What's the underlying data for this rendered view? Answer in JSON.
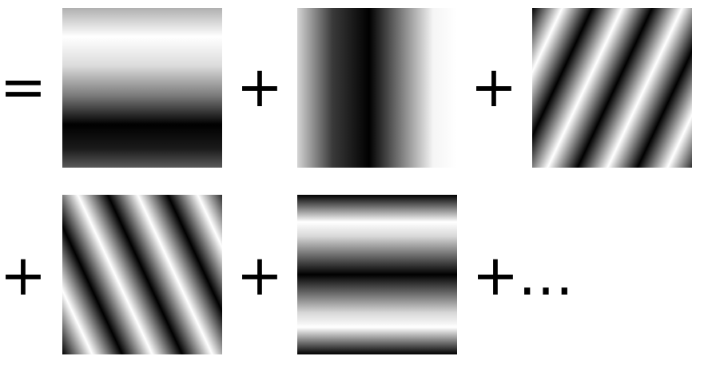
{
  "equation": {
    "equals": "=",
    "plus": "+",
    "ellipsis": "…"
  },
  "tiles": [
    {
      "orientation": "horizontal",
      "description_icon": "horizontal-wave-tile"
    },
    {
      "orientation": "vertical",
      "description_icon": "vertical-wave-tile"
    },
    {
      "orientation": "diagonal-down",
      "description_icon": "diagonal-wave-tile"
    },
    {
      "orientation": "diagonal-up",
      "description_icon": "diagonal-wave-tile"
    },
    {
      "orientation": "horizontal",
      "description_icon": "horizontal-wave-tile"
    }
  ]
}
